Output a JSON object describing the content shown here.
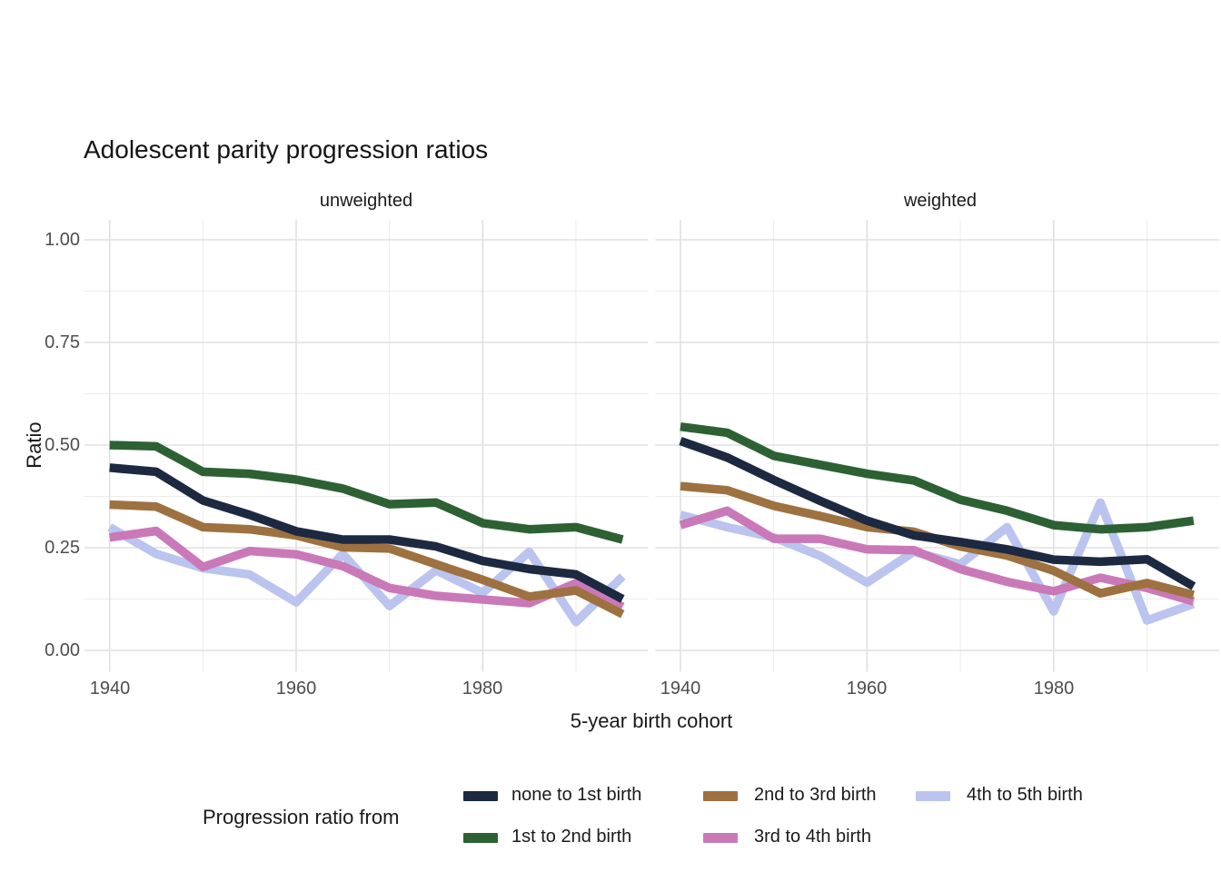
{
  "title": "Adolescent parity progression ratios",
  "facets": [
    "unweighted",
    "weighted"
  ],
  "axes": {
    "x_label": "5-year birth cohort",
    "y_label": "Ratio",
    "x_ticks": [
      "1940",
      "1960",
      "1980"
    ],
    "y_ticks": [
      "1.00",
      "0.75",
      "0.50",
      "0.25",
      "0.00"
    ]
  },
  "legend": {
    "title": "Progression ratio from",
    "items": [
      {
        "label": "none to 1st birth",
        "color": "#1c2940"
      },
      {
        "label": "1st to 2nd birth",
        "color": "#2d6134"
      },
      {
        "label": "2nd to 3rd birth",
        "color": "#9e7140"
      },
      {
        "label": "3rd to 4th birth",
        "color": "#ca79b8"
      },
      {
        "label": "4th to 5th birth",
        "color": "#bac4ef"
      }
    ]
  },
  "chart_data": {
    "type": "line",
    "x": [
      1940,
      1945,
      1950,
      1955,
      1960,
      1965,
      1970,
      1975,
      1980,
      1985,
      1990,
      1995
    ],
    "xlabel": "5-year birth cohort",
    "ylabel": "Ratio",
    "ylim": [
      0.0,
      1.0
    ],
    "y_major_ticks": [
      0.0,
      0.25,
      0.5,
      0.75,
      1.0
    ],
    "grid": {
      "x_major": [
        1940,
        1960,
        1980
      ],
      "x_minor": [
        1950,
        1970,
        1990
      ],
      "y_major": [
        0.0,
        0.25,
        0.5,
        0.75,
        1.0
      ],
      "y_minor": [
        0.125,
        0.375,
        0.625,
        0.875
      ]
    },
    "legend_position": "bottom",
    "facets": [
      {
        "label": "unweighted",
        "series": [
          {
            "name": "none to 1st birth",
            "color": "#1c2940",
            "values": [
              0.445,
              0.435,
              0.365,
              0.33,
              0.29,
              0.27,
              0.27,
              0.253,
              0.218,
              0.198,
              0.185,
              0.125
            ]
          },
          {
            "name": "1st to 2nd birth",
            "color": "#2d6134",
            "values": [
              0.5,
              0.497,
              0.435,
              0.43,
              0.416,
              0.394,
              0.356,
              0.36,
              0.31,
              0.295,
              0.3,
              0.27
            ]
          },
          {
            "name": "2nd to 3rd birth",
            "color": "#9e7140",
            "values": [
              0.355,
              0.35,
              0.3,
              0.295,
              0.28,
              0.251,
              0.248,
              0.21,
              0.172,
              0.131,
              0.146,
              0.088
            ]
          },
          {
            "name": "3rd to 4th birth",
            "color": "#ca79b8",
            "values": [
              0.275,
              0.291,
              0.203,
              0.242,
              0.234,
              0.205,
              0.152,
              0.133,
              0.124,
              0.115,
              0.164,
              0.106
            ]
          },
          {
            "name": "4th to 5th birth",
            "color": "#bac4ef",
            "values": [
              0.3,
              0.235,
              0.2,
              0.185,
              0.117,
              0.235,
              0.108,
              0.195,
              0.14,
              0.24,
              0.069,
              0.18
            ]
          }
        ]
      },
      {
        "label": "weighted",
        "series": [
          {
            "name": "none to 1st birth",
            "color": "#1c2940",
            "values": [
              0.51,
              0.47,
              0.415,
              0.364,
              0.316,
              0.28,
              0.264,
              0.246,
              0.221,
              0.216,
              0.222,
              0.156
            ]
          },
          {
            "name": "1st to 2nd birth",
            "color": "#2d6134",
            "values": [
              0.545,
              0.53,
              0.474,
              0.452,
              0.43,
              0.414,
              0.367,
              0.34,
              0.305,
              0.295,
              0.3,
              0.316
            ]
          },
          {
            "name": "2nd to 3rd birth",
            "color": "#9e7140",
            "values": [
              0.4,
              0.39,
              0.352,
              0.327,
              0.3,
              0.289,
              0.253,
              0.231,
              0.194,
              0.139,
              0.164,
              0.135
            ]
          },
          {
            "name": "3rd to 4th birth",
            "color": "#ca79b8",
            "values": [
              0.305,
              0.34,
              0.272,
              0.272,
              0.246,
              0.244,
              0.198,
              0.167,
              0.144,
              0.177,
              0.152,
              0.119
            ]
          },
          {
            "name": "4th to 5th birth",
            "color": "#bac4ef",
            "values": [
              0.33,
              0.3,
              0.275,
              0.23,
              0.165,
              0.24,
              0.21,
              0.3,
              0.095,
              0.36,
              0.073,
              0.113
            ]
          }
        ]
      }
    ]
  }
}
